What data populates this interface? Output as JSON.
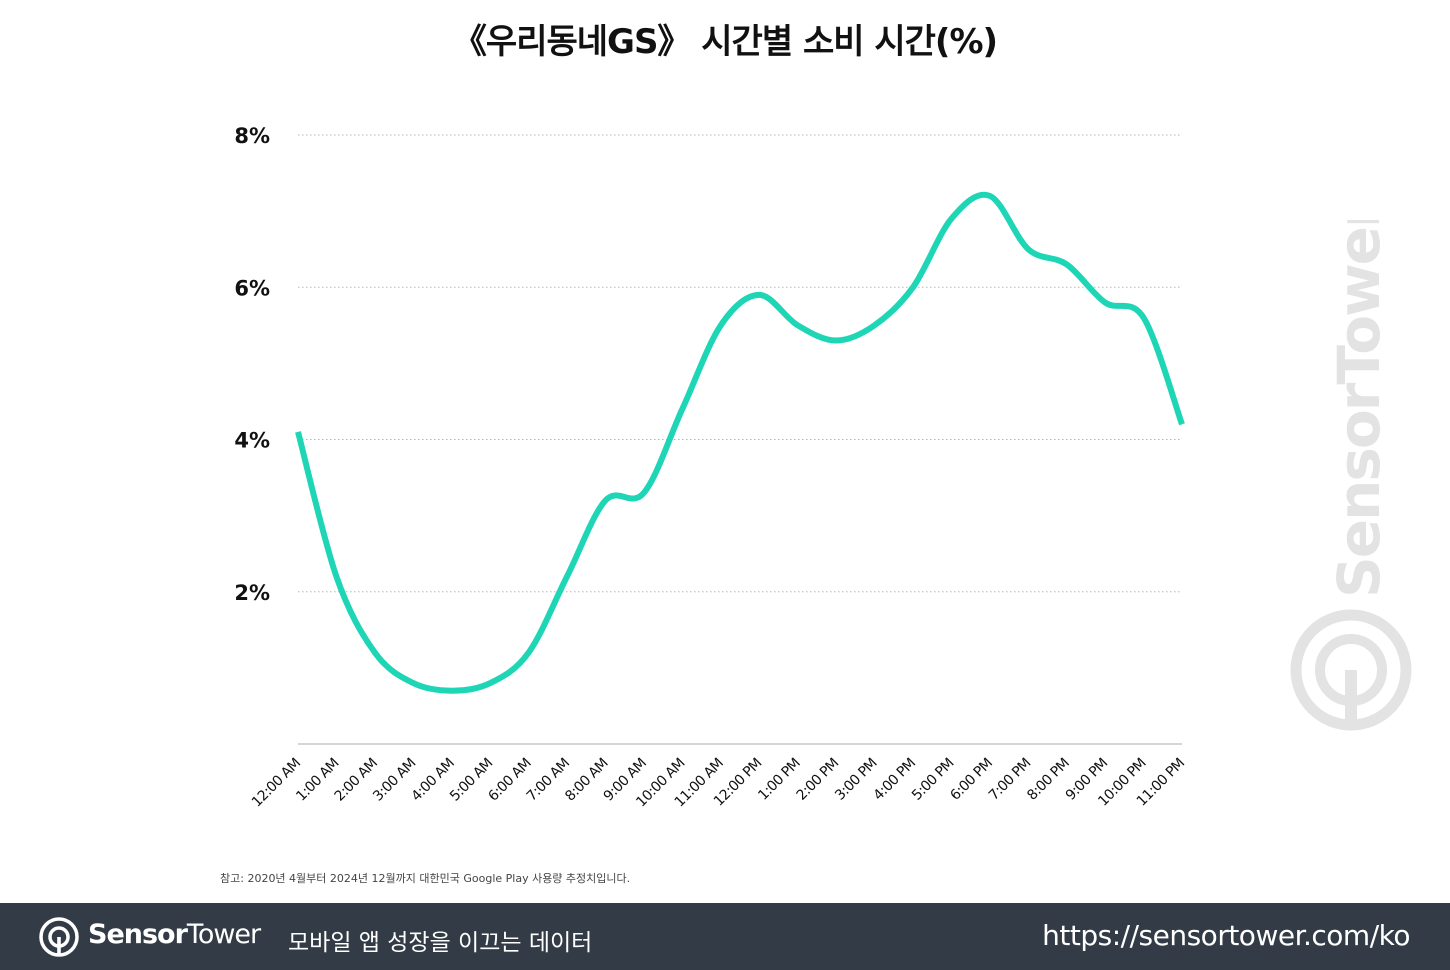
{
  "chart_data": {
    "type": "line",
    "title": "《우리동네GS》 시간별 소비 시간(%)",
    "xlabel": "",
    "ylabel": "",
    "categories": [
      "12:00 AM",
      "1:00 AM",
      "2:00 AM",
      "3:00 AM",
      "4:00 AM",
      "5:00 AM",
      "6:00 AM",
      "7:00 AM",
      "8:00 AM",
      "9:00 AM",
      "10:00 AM",
      "11:00 AM",
      "12:00 PM",
      "1:00 PM",
      "2:00 PM",
      "3:00 PM",
      "4:00 PM",
      "5:00 PM",
      "6:00 PM",
      "7:00 PM",
      "8:00 PM",
      "9:00 PM",
      "10:00 PM",
      "11:00 PM"
    ],
    "series": [
      {
        "values": [
          4.1,
          2.2,
          1.2,
          0.8,
          0.7,
          0.8,
          1.2,
          2.2,
          3.2,
          3.3,
          4.4,
          5.5,
          5.9,
          5.5,
          5.3,
          5.5,
          6.0,
          6.9,
          7.2,
          6.5,
          6.3,
          5.8,
          5.6,
          4.2
        ],
        "color": "#1ed6b5"
      }
    ],
    "ylim": [
      0,
      8
    ],
    "yticks": [
      2,
      4,
      6,
      8
    ],
    "ytick_labels": [
      "2%",
      "4%",
      "6%",
      "8%"
    ],
    "grid": true,
    "legend": "none"
  },
  "footnote": "참고: 2020년 4월부터 2024년 12월까지 대한민국 Google Play 사용량 추정치입니다.",
  "watermark": {
    "icon": "sensortower-logo-icon",
    "text": "SensorTower",
    "color": "#e3e3e3"
  },
  "footer": {
    "brand_bold": "Sensor",
    "brand_light": "Tower",
    "tagline": "모바일 앱 성장을 이끄는 데이터",
    "url": "https://sensortower.com/ko",
    "background": "#333c46",
    "logo_icon": "sensortower-logo-icon"
  }
}
